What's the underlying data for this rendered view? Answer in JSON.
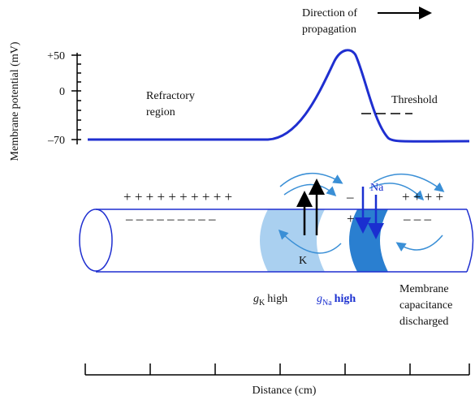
{
  "axis": {
    "y_label": "Membrane potential (mV)",
    "y_ticks": [
      "+50",
      "0",
      "–70"
    ],
    "x_label": "Distance (cm)"
  },
  "direction": [
    "Direction of",
    "propagation"
  ],
  "refractory": [
    "Refractory",
    "region"
  ],
  "threshold": "Threshold",
  "ions": {
    "k": "K",
    "na": "Na"
  },
  "charges": {
    "outside_left": "+ + + + + + + + + +",
    "outside_mid": "–",
    "outside_right": "+ + + +",
    "inside_left": "– – – – – – – – –",
    "inside_mid": "+",
    "inside_right": "– – –"
  },
  "gk": {
    "g": "g",
    "sub": "K",
    "text": "high"
  },
  "gna": {
    "g": "g",
    "sub": "Na",
    "text": "high"
  },
  "capacitance": [
    "Membrane",
    "capacitance",
    "discharged"
  ]
}
